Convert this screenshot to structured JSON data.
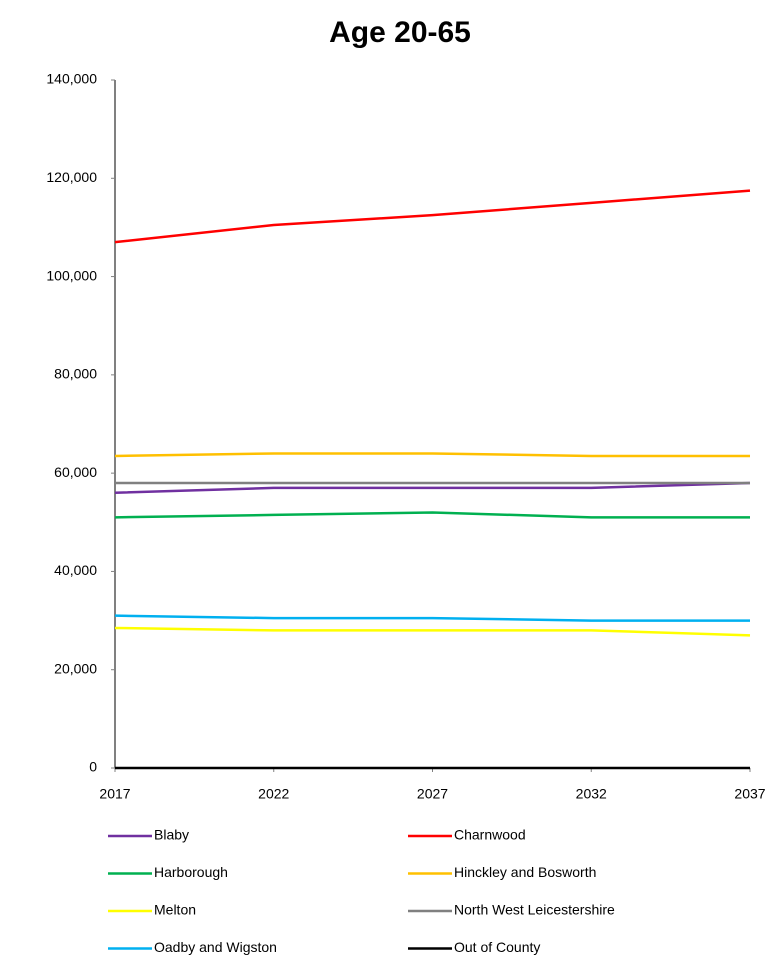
{
  "chart_data": {
    "type": "line",
    "title": "Age 20-65",
    "x": [
      2017,
      2022,
      2027,
      2032,
      2037
    ],
    "xlim": [
      2017,
      2037
    ],
    "xticks": [
      2017,
      2022,
      2027,
      2032,
      2037
    ],
    "ylim": [
      0,
      140000
    ],
    "yticks": [
      0,
      {
        "value": 20000,
        "label": "20,000"
      },
      {
        "value": 40000,
        "label": "40,000"
      },
      {
        "value": 60000,
        "label": "60,000"
      },
      {
        "value": 80000,
        "label": "80,000"
      },
      {
        "value": 100000,
        "label": "100,000"
      },
      {
        "value": 120000,
        "label": "120,000"
      },
      {
        "value": 140000,
        "label": "140,000"
      }
    ],
    "grid": false,
    "legend": "bottom",
    "series": [
      {
        "name": "Blaby",
        "color": "#7030a0",
        "values": [
          56000,
          57000,
          57000,
          57000,
          58000
        ]
      },
      {
        "name": "Charnwood",
        "color": "#ff0000",
        "values": [
          107000,
          110500,
          112500,
          115000,
          117500
        ]
      },
      {
        "name": "Harborough",
        "color": "#00b050",
        "values": [
          51000,
          51500,
          52000,
          51000,
          51000
        ]
      },
      {
        "name": "Hinckley and Bosworth",
        "color": "#ffc000",
        "values": [
          63500,
          64000,
          64000,
          63500,
          63500
        ]
      },
      {
        "name": "Melton",
        "color": "#ffff00",
        "values": [
          28500,
          28000,
          28000,
          28000,
          27000
        ]
      },
      {
        "name": "North West Leicestershire",
        "color": "#808080",
        "values": [
          58000,
          58000,
          58000,
          58000,
          58000
        ]
      },
      {
        "name": "Oadby and Wigston",
        "color": "#00b0f0",
        "values": [
          31000,
          30500,
          30500,
          30000,
          30000
        ]
      },
      {
        "name": "Out of County",
        "color": "#000000",
        "values": [
          0,
          0,
          0,
          0,
          0
        ]
      }
    ]
  }
}
